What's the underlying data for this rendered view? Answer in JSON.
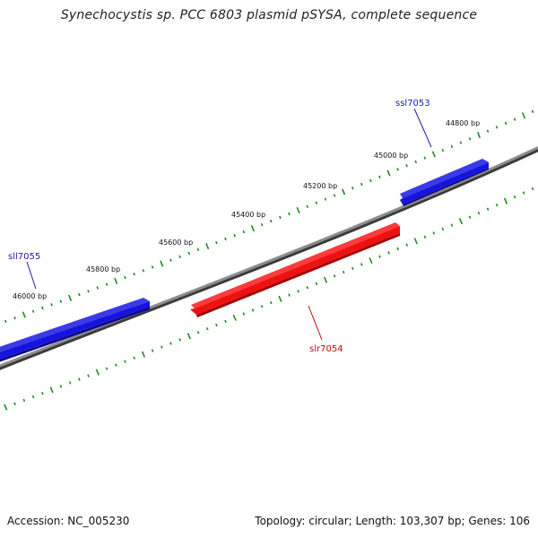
{
  "title": "Synechocystis sp. PCC 6803 plasmid pSYSA, complete sequence",
  "footer": {
    "accession": "Accession: NC_005230",
    "topology": "Topology: circular; Length: 103,307 bp; Genes: 106"
  },
  "colors": {
    "backbone": "#6f6f6f",
    "forward_gene": "#1414dc",
    "reverse_gene": "#ee1111",
    "tick": "#1f8a1f",
    "gene_label_forward": "#1a1aa8",
    "gene_label_reverse": "#cc0000"
  },
  "scale_labels": [
    {
      "text": "44800 bp"
    },
    {
      "text": "45000 bp"
    },
    {
      "text": "45200 bp"
    },
    {
      "text": "45400 bp"
    },
    {
      "text": "45600 bp"
    },
    {
      "text": "45800 bp"
    },
    {
      "text": "46000 bp"
    }
  ],
  "genes": [
    {
      "name": "ssl7053",
      "strand": "forward"
    },
    {
      "name": "slr7054",
      "strand": "reverse"
    },
    {
      "name": "sll7055",
      "strand": "forward"
    }
  ]
}
